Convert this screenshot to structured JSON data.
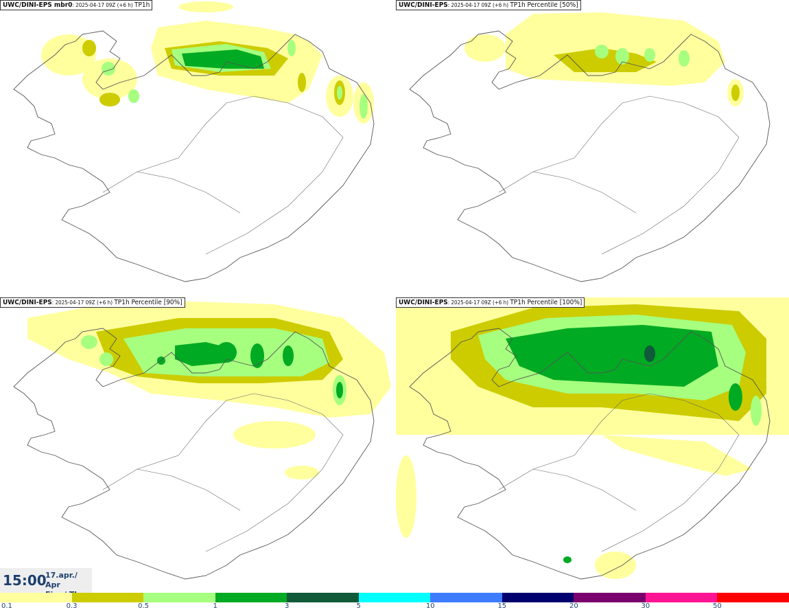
{
  "panels": [
    {
      "label": "UWC/DINI-EPS mbr0",
      "run": ": 2025-04-17 09Z (+6 h) ",
      "field": "TP1h"
    },
    {
      "label": "UWC/DINI-EPS",
      "run": ": 2025-04-17 09Z (+6 h) ",
      "field": "TP1h Percentile [50%]"
    },
    {
      "label": "UWC/DINI-EPS",
      "run": ": 2025-04-17 09Z (+6 h) ",
      "field": "TP1h Percentile [90%]"
    },
    {
      "label": "UWC/DINI-EPS",
      "run": ": 2025-04-17 09Z (+6 h) ",
      "field": "TP1h Percentile [100%]"
    }
  ],
  "time": {
    "hour": "15:00",
    "date": "17.apr./ Apr",
    "day": "Fim./ Thu"
  },
  "legend": {
    "ticks": [
      "0.1",
      "0.3",
      "0.5",
      "1",
      "3",
      "5",
      "10",
      "15",
      "20",
      "30",
      "50"
    ],
    "colors": [
      "#ffff9e",
      "#cccc00",
      "#a6ff7f",
      "#00aa22",
      "#105a3a",
      "#00ffff",
      "#3d7cff",
      "#00006e",
      "#7a006e",
      "#ff1493",
      "#ff0000"
    ]
  },
  "palette": {
    "light": "#ffff9e",
    "olive": "#cccc00",
    "pale_green": "#a6ff7f",
    "green": "#00aa22",
    "dark_green": "#105a3a",
    "navy": "#1f3f7f"
  }
}
